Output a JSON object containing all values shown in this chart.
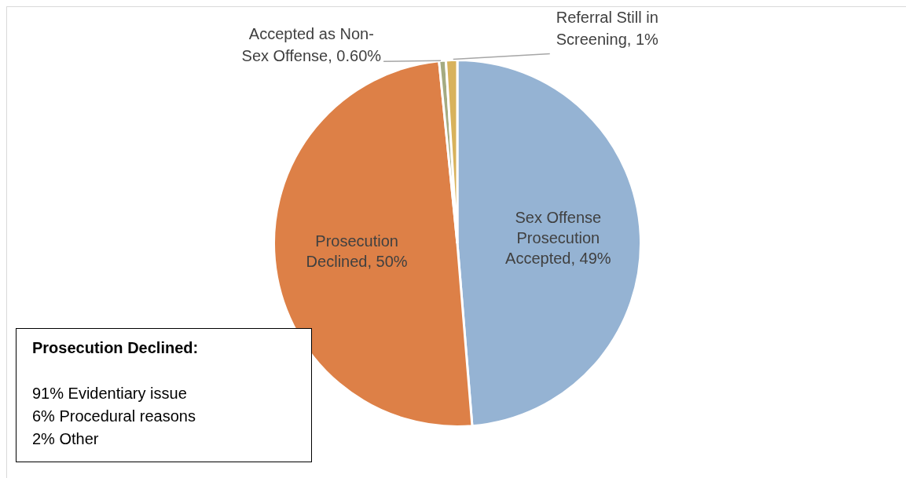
{
  "chart_data": {
    "type": "pie",
    "categories": [
      "Sex Offense Prosecution Accepted",
      "Prosecution Declined",
      "Accepted as Non-Sex Offense",
      "Referral Still in Screening"
    ],
    "values": [
      49,
      50,
      0.6,
      1
    ],
    "colors": [
      "#95b3d3",
      "#dd8047",
      "#a5ab81",
      "#d8b25c"
    ],
    "value_labels": [
      "49%",
      "50%",
      "0.60%",
      "1%"
    ],
    "annotations": [
      "Prosecution Declined:",
      "91% Evidentiary issue",
      "6% Procedural reasons",
      "2% Other"
    ],
    "legend": false
  }
}
